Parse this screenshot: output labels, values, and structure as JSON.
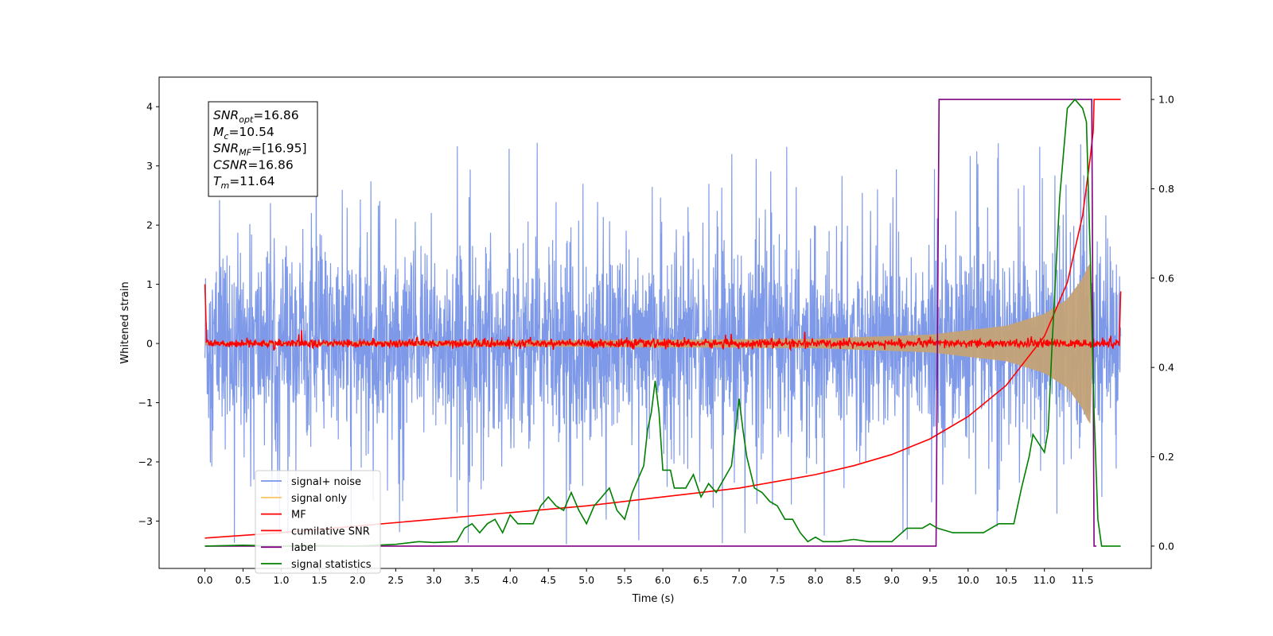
{
  "chart_data": {
    "type": "line",
    "xlabel": "Time (s)",
    "ylabel": "Whitened strain",
    "xlim": [
      -0.6,
      12.4
    ],
    "ylim": [
      -3.8,
      4.5
    ],
    "y2lim": [
      -0.05,
      1.05
    ],
    "x_ticks": [
      "0.0",
      "0.5",
      "1.0",
      "1.5",
      "2.0",
      "2.5",
      "3.0",
      "3.5",
      "4.0",
      "4.5",
      "5.0",
      "5.5",
      "6.0",
      "6.5",
      "7.0",
      "7.5",
      "8.0",
      "8.5",
      "9.0",
      "9.5",
      "10.0",
      "10.5",
      "11.0",
      "11.5"
    ],
    "y_ticks": [
      "−3",
      "−2",
      "−1",
      "0",
      "1",
      "2",
      "3",
      "4"
    ],
    "y2_ticks": [
      "0.0",
      "0.2",
      "0.4",
      "0.6",
      "0.8",
      "1.0"
    ],
    "grid": false,
    "legend_position": "lower-left",
    "annotation": {
      "lines": [
        {
          "sym": "SNR",
          "sub": "opt",
          "rest": "=16.86"
        },
        {
          "sym": "M",
          "sub": "c",
          "rest": "=10.54"
        },
        {
          "sym": "SNR",
          "sub": "MF",
          "rest": "=[16.95]"
        },
        {
          "sym": "CSNR",
          "sub": "",
          "rest": "=16.86"
        },
        {
          "sym": "T",
          "sub": "m",
          "rest": "=11.64"
        }
      ]
    },
    "series": [
      {
        "name": "signal+ noise",
        "color": "#7894e8",
        "axis": "left",
        "style": "noise",
        "amplitude": 1.1,
        "spike_max": 3.4,
        "range": [
          0,
          12.0
        ]
      },
      {
        "name": "signal only",
        "color": "#f5c86a",
        "axis": "left",
        "style": "chirp",
        "envelope": [
          [
            0,
            0.02
          ],
          [
            8,
            0.08
          ],
          [
            9.5,
            0.15
          ],
          [
            10.5,
            0.3
          ],
          [
            11.0,
            0.5
          ],
          [
            11.3,
            0.75
          ],
          [
            11.5,
            1.1
          ],
          [
            11.6,
            1.4
          ],
          [
            11.64,
            0
          ]
        ]
      },
      {
        "name": "MF",
        "color": "#ff0000",
        "axis": "left",
        "style": "mf",
        "points": [
          [
            0,
            1.0
          ],
          [
            0.02,
            0.15
          ],
          [
            11.98,
            0.0
          ],
          [
            12.0,
            0.88
          ]
        ]
      },
      {
        "name": "cumilative SNR",
        "color": "#ff0000",
        "axis": "right",
        "points": [
          [
            0,
            0.018
          ],
          [
            1,
            0.03
          ],
          [
            2,
            0.045
          ],
          [
            3,
            0.06
          ],
          [
            4,
            0.075
          ],
          [
            5,
            0.09
          ],
          [
            6,
            0.11
          ],
          [
            7,
            0.13
          ],
          [
            8,
            0.16
          ],
          [
            8.5,
            0.18
          ],
          [
            9,
            0.205
          ],
          [
            9.5,
            0.24
          ],
          [
            10,
            0.29
          ],
          [
            10.5,
            0.36
          ],
          [
            11,
            0.47
          ],
          [
            11.3,
            0.59
          ],
          [
            11.5,
            0.74
          ],
          [
            11.6,
            0.87
          ],
          [
            11.64,
            0.93
          ],
          [
            11.65,
            1.0
          ],
          [
            12.0,
            1.0
          ]
        ]
      },
      {
        "name": "label",
        "color": "#800080",
        "axis": "right",
        "points": [
          [
            0,
            0
          ],
          [
            9.58,
            0
          ],
          [
            9.62,
            1
          ],
          [
            11.62,
            1
          ],
          [
            11.65,
            0
          ],
          [
            11.68,
            0
          ]
        ]
      },
      {
        "name": "signal statistics",
        "color": "#008000",
        "axis": "right",
        "points": [
          [
            0,
            0.0
          ],
          [
            0.5,
            0.002
          ],
          [
            1,
            0.0
          ],
          [
            1.5,
            0.001
          ],
          [
            2,
            0.0
          ],
          [
            2.5,
            0.004
          ],
          [
            2.8,
            0.01
          ],
          [
            3,
            0.008
          ],
          [
            3.3,
            0.01
          ],
          [
            3.4,
            0.04
          ],
          [
            3.5,
            0.05
          ],
          [
            3.6,
            0.03
          ],
          [
            3.7,
            0.05
          ],
          [
            3.8,
            0.06
          ],
          [
            3.9,
            0.03
          ],
          [
            4.0,
            0.07
          ],
          [
            4.1,
            0.05
          ],
          [
            4.3,
            0.05
          ],
          [
            4.4,
            0.09
          ],
          [
            4.5,
            0.11
          ],
          [
            4.6,
            0.09
          ],
          [
            4.7,
            0.08
          ],
          [
            4.8,
            0.12
          ],
          [
            4.9,
            0.08
          ],
          [
            5.0,
            0.05
          ],
          [
            5.1,
            0.09
          ],
          [
            5.2,
            0.11
          ],
          [
            5.3,
            0.13
          ],
          [
            5.4,
            0.08
          ],
          [
            5.5,
            0.06
          ],
          [
            5.6,
            0.12
          ],
          [
            5.75,
            0.18
          ],
          [
            5.8,
            0.26
          ],
          [
            5.85,
            0.3
          ],
          [
            5.9,
            0.37
          ],
          [
            5.95,
            0.3
          ],
          [
            6.0,
            0.17
          ],
          [
            6.1,
            0.17
          ],
          [
            6.15,
            0.13
          ],
          [
            6.3,
            0.13
          ],
          [
            6.4,
            0.16
          ],
          [
            6.5,
            0.11
          ],
          [
            6.6,
            0.14
          ],
          [
            6.7,
            0.12
          ],
          [
            6.8,
            0.15
          ],
          [
            6.9,
            0.18
          ],
          [
            7.0,
            0.33
          ],
          [
            7.05,
            0.26
          ],
          [
            7.1,
            0.2
          ],
          [
            7.2,
            0.13
          ],
          [
            7.3,
            0.12
          ],
          [
            7.4,
            0.1
          ],
          [
            7.5,
            0.09
          ],
          [
            7.6,
            0.06
          ],
          [
            7.7,
            0.06
          ],
          [
            7.8,
            0.03
          ],
          [
            7.9,
            0.01
          ],
          [
            8.0,
            0.02
          ],
          [
            8.1,
            0.01
          ],
          [
            8.3,
            0.01
          ],
          [
            8.5,
            0.015
          ],
          [
            8.7,
            0.01
          ],
          [
            9.0,
            0.01
          ],
          [
            9.2,
            0.04
          ],
          [
            9.4,
            0.04
          ],
          [
            9.5,
            0.05
          ],
          [
            9.6,
            0.04
          ],
          [
            9.8,
            0.03
          ],
          [
            10.0,
            0.03
          ],
          [
            10.2,
            0.03
          ],
          [
            10.4,
            0.05
          ],
          [
            10.6,
            0.05
          ],
          [
            10.7,
            0.13
          ],
          [
            10.8,
            0.2
          ],
          [
            10.85,
            0.25
          ],
          [
            11.0,
            0.21
          ],
          [
            11.05,
            0.26
          ],
          [
            11.1,
            0.45
          ],
          [
            11.2,
            0.78
          ],
          [
            11.3,
            0.98
          ],
          [
            11.4,
            1.0
          ],
          [
            11.5,
            0.98
          ],
          [
            11.55,
            0.95
          ],
          [
            11.6,
            0.65
          ],
          [
            11.65,
            0.3
          ],
          [
            11.7,
            0.06
          ],
          [
            11.75,
            0.0
          ],
          [
            12.0,
            0.0
          ]
        ]
      }
    ]
  }
}
